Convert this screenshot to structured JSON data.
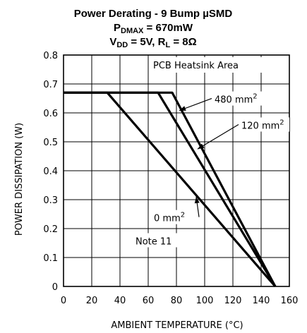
{
  "chart_data": {
    "type": "line",
    "title_lines": {
      "line1": "Power Derating - 9 Bump µSMD",
      "line2": {
        "pre": "P",
        "sub": "DMAX",
        "post": " = 670mW"
      },
      "line3": {
        "a": "V",
        "a_sub": "DD",
        "b": " = 5V, R",
        "b_sub": "L",
        "c": " = 8Ω"
      }
    },
    "xlabel": "AMBIENT TEMPERATURE (°C)",
    "ylabel": "POWER DISSIPATION (W)",
    "xlim": [
      0,
      160
    ],
    "ylim": [
      0,
      0.8
    ],
    "x_ticks": [
      0,
      20,
      40,
      60,
      80,
      100,
      120,
      140,
      160
    ],
    "y_ticks": [
      0,
      0.1,
      0.2,
      0.3,
      0.4,
      0.5,
      0.6,
      0.7,
      0.8
    ],
    "y_tick_labels": [
      "0",
      "0.1",
      "0.2",
      "0.3",
      "0.4",
      "0.5",
      "0.6",
      "0.7",
      "0.8"
    ],
    "grid": true,
    "series": [
      {
        "points": [
          [
            0,
            0.67
          ],
          [
            77,
            0.67
          ],
          [
            150,
            0
          ]
        ]
      },
      {
        "points": [
          [
            0,
            0.67
          ],
          [
            67,
            0.67
          ],
          [
            150,
            0
          ]
        ]
      },
      {
        "points": [
          [
            0,
            0.67
          ],
          [
            31,
            0.67
          ],
          [
            150,
            0
          ]
        ]
      }
    ],
    "legend_title": "PCB Heatsink Area",
    "annotations": [
      {
        "label": "480 mm",
        "sup": "2",
        "pos_x": 107,
        "pos_y": 0.64,
        "target_x": 82,
        "target_y": 0.608
      },
      {
        "label": "120 mm",
        "sup": "2",
        "pos_x": 126,
        "pos_y": 0.55,
        "target_x": 95,
        "target_y": 0.475
      },
      {
        "label": "0 mm",
        "sup": "2",
        "pos_x": 64,
        "pos_y": 0.23,
        "target_x": 94,
        "target_y": 0.31
      }
    ],
    "note": "Note 11",
    "note_pos": [
      51,
      0.15
    ]
  }
}
